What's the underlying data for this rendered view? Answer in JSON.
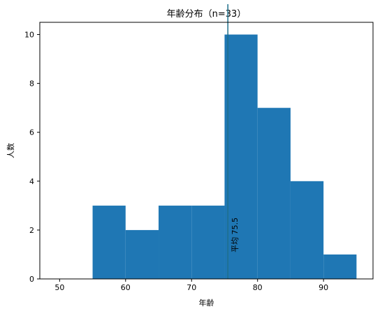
{
  "chart_data": {
    "type": "bar",
    "title": "年齢分布（n=33）",
    "xlabel": "年齢",
    "ylabel": "人数",
    "xlim": [
      47,
      97.5
    ],
    "ylim": [
      0,
      10.5
    ],
    "x_ticks": [
      50,
      60,
      70,
      80,
      90
    ],
    "y_ticks": [
      0,
      2,
      4,
      6,
      8,
      10
    ],
    "bins": [
      {
        "start": 55,
        "end": 60,
        "value": 3
      },
      {
        "start": 60,
        "end": 65,
        "value": 2
      },
      {
        "start": 65,
        "end": 70,
        "value": 3
      },
      {
        "start": 70,
        "end": 75,
        "value": 3
      },
      {
        "start": 75,
        "end": 80,
        "value": 10
      },
      {
        "start": 80,
        "end": 85,
        "value": 7
      },
      {
        "start": 85,
        "end": 90,
        "value": 4
      },
      {
        "start": 90,
        "end": 95,
        "value": 1
      }
    ],
    "mean": 75.5,
    "mean_label": "平均 75.5",
    "bar_color": "#1f77b4",
    "mean_line_color": "#1f6f8b",
    "grid": false,
    "legend": "none"
  }
}
